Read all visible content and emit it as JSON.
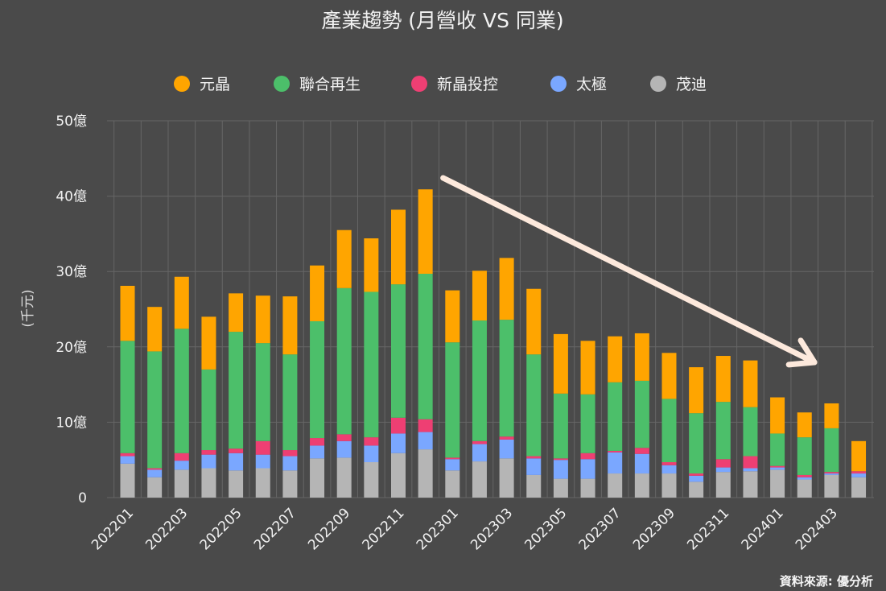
{
  "chart_data": {
    "type": "bar",
    "stacked": true,
    "title": "產業趨勢 (月營收 VS 同業)",
    "ylabel": "(千元)",
    "ylim": [
      0,
      50
    ],
    "yticks": [
      {
        "value": 0,
        "label": "0"
      },
      {
        "value": 10,
        "label": "10億"
      },
      {
        "value": 20,
        "label": "20億"
      },
      {
        "value": 30,
        "label": "30億"
      },
      {
        "value": 40,
        "label": "40億"
      },
      {
        "value": 50,
        "label": "50億"
      }
    ],
    "grid": true,
    "legend_position": "top",
    "source": "資料來源: 優分析",
    "categories": [
      "202201",
      "202202",
      "202203",
      "202204",
      "202205",
      "202206",
      "202207",
      "202208",
      "202209",
      "202210",
      "202211",
      "202212",
      "202301",
      "202302",
      "202303",
      "202304",
      "202305",
      "202306",
      "202307",
      "202308",
      "202309",
      "202310",
      "202311",
      "202312",
      "202401",
      "202402",
      "202403",
      "202404"
    ],
    "xtick_labels": [
      "202201",
      "202203",
      "202205",
      "202207",
      "202209",
      "202211",
      "202301",
      "202303",
      "202305",
      "202307",
      "202309",
      "202311",
      "202401",
      "202403"
    ],
    "legend_order": [
      "元晶",
      "聯合再生",
      "新晶投控",
      "太極",
      "茂迪"
    ],
    "series": [
      {
        "name": "茂迪",
        "color": "#b5b5b5",
        "values": [
          4.5,
          2.7,
          3.7,
          3.9,
          3.6,
          3.9,
          3.6,
          5.2,
          5.3,
          4.7,
          5.9,
          6.4,
          3.6,
          4.8,
          5.2,
          3.0,
          2.5,
          2.5,
          3.2,
          3.2,
          3.2,
          2.1,
          3.4,
          3.5,
          3.7,
          2.4,
          3.0,
          2.7
        ]
      },
      {
        "name": "太極",
        "color": "#7aa7ff",
        "values": [
          1.0,
          1.0,
          1.2,
          1.8,
          2.3,
          1.8,
          1.9,
          1.7,
          2.2,
          2.2,
          2.6,
          2.3,
          1.5,
          2.3,
          2.5,
          2.2,
          2.5,
          2.6,
          2.8,
          2.6,
          1.1,
          0.8,
          0.6,
          0.4,
          0.3,
          0.3,
          0.2,
          0.5
        ]
      },
      {
        "name": "新晶投控",
        "color": "#ee3f73",
        "values": [
          0.4,
          0.2,
          1.0,
          0.6,
          0.6,
          1.8,
          0.8,
          1.0,
          0.9,
          1.1,
          2.1,
          1.7,
          0.2,
          0.4,
          0.4,
          0.3,
          0.2,
          0.8,
          0.2,
          0.8,
          0.4,
          0.3,
          1.1,
          1.6,
          0.2,
          0.3,
          0.2,
          0.3
        ]
      },
      {
        "name": "聯合再生",
        "color": "#4cbf6a",
        "values": [
          14.9,
          15.5,
          16.5,
          10.7,
          15.5,
          13.0,
          12.7,
          15.5,
          19.4,
          19.3,
          17.7,
          19.3,
          15.3,
          16.0,
          15.5,
          13.5,
          8.6,
          7.8,
          9.1,
          8.9,
          8.4,
          8.0,
          7.6,
          6.5,
          4.3,
          5.0,
          5.8,
          0
        ]
      },
      {
        "name": "元晶",
        "color": "#ffa500",
        "values": [
          7.3,
          5.9,
          6.9,
          7.0,
          5.1,
          6.3,
          7.7,
          7.4,
          7.7,
          7.1,
          9.9,
          11.2,
          6.9,
          6.6,
          8.2,
          8.7,
          7.9,
          7.1,
          6.1,
          6.3,
          6.1,
          6.1,
          6.1,
          6.2,
          4.8,
          3.3,
          3.3,
          4.0
        ]
      }
    ],
    "annotation": {
      "type": "arrow",
      "color": "#fde9dc",
      "from_category": "202212",
      "to_category": "202404"
    }
  }
}
